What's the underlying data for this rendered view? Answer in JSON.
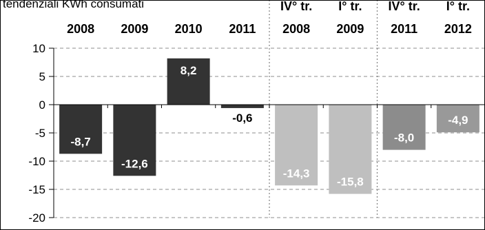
{
  "header_text": "tendenziali KWh consumati",
  "chart_data": {
    "type": "bar",
    "categories": [
      "2008",
      "2009",
      "2010",
      "2011",
      "2008",
      "2009",
      "2011",
      "2012"
    ],
    "group_headers": [
      "",
      "",
      "",
      "",
      "IV° tr.",
      "I° tr.",
      "IV° tr.",
      "I° tr."
    ],
    "values": [
      -8.7,
      -12.6,
      8.2,
      -0.6,
      -14.3,
      -15.8,
      -8.0,
      -4.9
    ],
    "data_labels": [
      "-8,7",
      "-12,6",
      "8,2",
      "-0,6",
      "-14,3",
      "-15,8",
      "-8,0",
      "-4,9"
    ],
    "bar_colors": [
      "#333333",
      "#333333",
      "#333333",
      "#333333",
      "#bfbfbf",
      "#bfbfbf",
      "#8c8c8c",
      "#999999"
    ],
    "label_colors": [
      "#ffffff",
      "#ffffff",
      "#ffffff",
      "#000000",
      "#ffffff",
      "#ffffff",
      "#ffffff",
      "#ffffff"
    ],
    "ylim": [
      -20,
      10
    ],
    "yticks": [
      10,
      5,
      0,
      -5,
      -10,
      -15,
      -20
    ],
    "grid": true,
    "title": "",
    "xlabel": "",
    "ylabel": ""
  }
}
